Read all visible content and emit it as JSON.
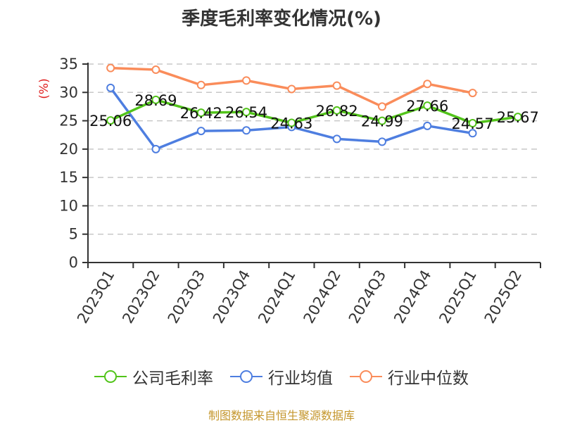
{
  "title": "季度毛利率变化情况(%)",
  "y_unit_label": "(%)",
  "source": "制图数据来自恒生聚源数据库",
  "legend": [
    {
      "label": "公司毛利率",
      "color": "#52c41a"
    },
    {
      "label": "行业均值",
      "color": "#4e7ee0"
    },
    {
      "label": "行业中位数",
      "color": "#fa8c5a"
    }
  ],
  "chart_data": {
    "type": "line",
    "title": "季度毛利率变化情况(%)",
    "xlabel": "",
    "ylabel": "(%)",
    "ylim": [
      0,
      35
    ],
    "yticks": [
      0,
      5,
      10,
      15,
      20,
      25,
      30,
      35
    ],
    "grid": true,
    "legend_position": "bottom",
    "categories": [
      "2023Q1",
      "2023Q2",
      "2023Q3",
      "2023Q4",
      "2024Q1",
      "2024Q2",
      "2024Q3",
      "2024Q4",
      "2025Q1",
      "2025Q2"
    ],
    "series": [
      {
        "name": "公司毛利率",
        "color": "#52c41a",
        "values": [
          25.06,
          28.69,
          26.42,
          26.54,
          24.63,
          26.82,
          24.99,
          27.66,
          24.57,
          25.67
        ],
        "labels": [
          "25.06",
          "28.69",
          "26.42",
          "26.54",
          "24.63",
          "26.82",
          "24.99",
          "27.66",
          "24.57",
          "25.67"
        ]
      },
      {
        "name": "行业均值",
        "color": "#4e7ee0",
        "values": [
          30.8,
          20.0,
          23.2,
          23.3,
          23.9,
          21.8,
          21.3,
          24.1,
          22.8,
          null
        ]
      },
      {
        "name": "行业中位数",
        "color": "#fa8c5a",
        "values": [
          34.3,
          34.0,
          31.3,
          32.1,
          30.6,
          31.2,
          27.5,
          31.5,
          29.9,
          null
        ]
      }
    ]
  }
}
